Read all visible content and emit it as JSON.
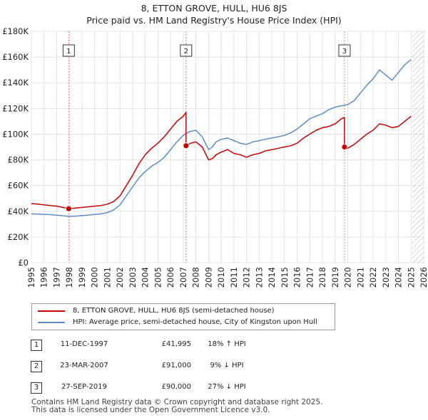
{
  "title_line1": "8, ETTON GROVE, HULL, HU6 8JS",
  "title_line2": "Price paid vs. HM Land Registry's House Price Index (HPI)",
  "legend": [
    {
      "label": "8, ETTON GROVE, HULL, HU6 8JS (semi-detached house)",
      "color": "#cc0000"
    },
    {
      "label": "HPI: Average price, semi-detached house, City of Kingston upon Hull",
      "color": "#5b8ec9"
    }
  ],
  "sales": [
    {
      "num": "1",
      "date": "11-DEC-1997",
      "price": "£41,995",
      "hpi": "18% ↑ HPI"
    },
    {
      "num": "2",
      "date": "23-MAR-2007",
      "price": "£91,000",
      "hpi": "9% ↓ HPI"
    },
    {
      "num": "3",
      "date": "27-SEP-2019",
      "price": "£90,000",
      "hpi": "27% ↓ HPI"
    }
  ],
  "footer_line1": "Contains HM Land Registry data © Crown copyright and database right 2025.",
  "footer_line2": "This data is licensed under the Open Government Licence v3.0.",
  "chart_data": {
    "type": "line",
    "title": "Price paid vs. HM Land Registry's House Price Index (HPI)",
    "xlim": [
      1995,
      2026
    ],
    "ylim": [
      0,
      180000
    ],
    "x_ticks": [
      1995,
      1996,
      1997,
      1998,
      1999,
      2000,
      2001,
      2002,
      2003,
      2004,
      2005,
      2006,
      2007,
      2008,
      2009,
      2010,
      2011,
      2012,
      2013,
      2014,
      2015,
      2016,
      2017,
      2018,
      2019,
      2020,
      2021,
      2022,
      2023,
      2024,
      2025,
      2026
    ],
    "y_ticks": [
      0,
      20000,
      40000,
      60000,
      80000,
      100000,
      120000,
      140000,
      160000,
      180000
    ],
    "y_tick_labels": [
      "£0",
      "£20K",
      "£40K",
      "£60K",
      "£80K",
      "£100K",
      "£120K",
      "£140K",
      "£160K",
      "£180K"
    ],
    "sale_markers": [
      {
        "label": "1",
        "x": 1997.95,
        "y": 41995
      },
      {
        "label": "2",
        "x": 2007.22,
        "y": 91000
      },
      {
        "label": "3",
        "x": 2019.74,
        "y": 90000
      }
    ],
    "future_hatch_from": 2025.1,
    "series": [
      {
        "name": "8, ETTON GROVE, HULL, HU6 8JS (semi-detached house)",
        "color": "#cc0000",
        "x": [
          1995,
          1995.5,
          1996,
          1996.5,
          1997,
          1997.5,
          1997.95,
          1998.5,
          1999,
          1999.5,
          2000,
          2000.5,
          2001,
          2001.5,
          2002,
          2002.5,
          2003,
          2003.5,
          2004,
          2004.5,
          2005,
          2005.5,
          2006,
          2006.5,
          2007.0,
          2007.22,
          2007.22,
          2007.6,
          2008,
          2008.5,
          2009,
          2009.3,
          2009.6,
          2010,
          2010.5,
          2011,
          2011.5,
          2012,
          2012.5,
          2013,
          2013.5,
          2014,
          2014.5,
          2015,
          2015.5,
          2016,
          2016.5,
          2017,
          2017.5,
          2018,
          2018.5,
          2019,
          2019.5,
          2019.74,
          2019.74,
          2020,
          2020.5,
          2021,
          2021.5,
          2022,
          2022.5,
          2023,
          2023.5,
          2024,
          2024.5,
          2025.0
        ],
        "y": [
          46000,
          45500,
          45000,
          44500,
          44000,
          43000,
          41995,
          42500,
          43000,
          43500,
          44000,
          44500,
          45500,
          47500,
          52000,
          60000,
          68000,
          77000,
          84000,
          89000,
          93000,
          98000,
          104000,
          110000,
          114000,
          117000,
          91000,
          93000,
          94000,
          90000,
          80000,
          81000,
          84000,
          86000,
          88000,
          85000,
          84000,
          82000,
          84000,
          85000,
          87000,
          88000,
          89000,
          90000,
          91000,
          93000,
          97000,
          100000,
          103000,
          105000,
          106000,
          108000,
          112000,
          113000,
          90000,
          89000,
          92000,
          96000,
          100000,
          103000,
          108000,
          107000,
          105000,
          106000,
          110000,
          114000
        ]
      },
      {
        "name": "HPI: Average price, semi-detached house, City of Kingston upon Hull",
        "color": "#5b8ec9",
        "x": [
          1995,
          1995.5,
          1996,
          1996.5,
          1997,
          1997.5,
          1998,
          1998.5,
          1999,
          1999.5,
          2000,
          2000.5,
          2001,
          2001.5,
          2002,
          2002.5,
          2003,
          2003.5,
          2004,
          2004.5,
          2005,
          2005.5,
          2006,
          2006.5,
          2007,
          2007.5,
          2008,
          2008.5,
          2009,
          2009.3,
          2009.6,
          2010,
          2010.5,
          2011,
          2011.5,
          2012,
          2012.5,
          2013,
          2013.5,
          2014,
          2014.5,
          2015,
          2015.5,
          2016,
          2016.5,
          2017,
          2017.5,
          2018,
          2018.5,
          2019,
          2019.5,
          2020,
          2020.5,
          2021,
          2021.5,
          2022,
          2022.5,
          2023,
          2023.5,
          2024,
          2024.5,
          2025.0
        ],
        "y": [
          38000,
          37800,
          37600,
          37400,
          37000,
          36500,
          36000,
          36200,
          36600,
          37000,
          37500,
          38000,
          39000,
          41000,
          45000,
          52000,
          59000,
          66000,
          71000,
          75000,
          78000,
          82000,
          88000,
          94000,
          99000,
          102000,
          103000,
          98000,
          88000,
          90000,
          94000,
          96000,
          97000,
          95000,
          93000,
          92000,
          94000,
          95000,
          96000,
          97000,
          98000,
          99000,
          101000,
          104000,
          108000,
          112000,
          114000,
          116000,
          119000,
          121000,
          122000,
          123000,
          126000,
          132000,
          138000,
          143000,
          150000,
          146000,
          142000,
          148000,
          154000,
          158000
        ]
      }
    ]
  }
}
